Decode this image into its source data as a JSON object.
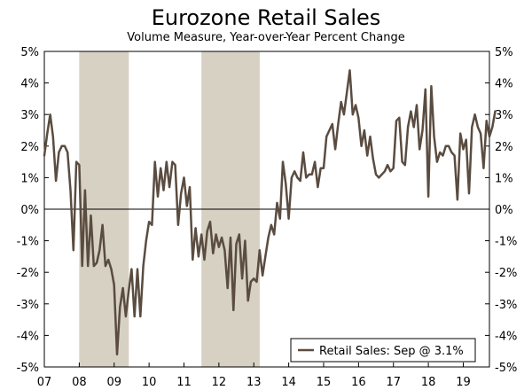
{
  "chart_data": {
    "type": "line",
    "title": "Eurozone Retail Sales",
    "subtitle": "Volume Measure, Year-over-Year Percent Change",
    "xlabel": "",
    "ylabel": "",
    "ylim": [
      -5,
      5
    ],
    "xlim": [
      2007.0,
      2019.75
    ],
    "y_ticks": [
      5,
      4,
      3,
      2,
      1,
      0,
      -1,
      -2,
      -3,
      -4,
      -5
    ],
    "y_tick_labels": [
      "5%",
      "4%",
      "3%",
      "2%",
      "1%",
      "0%",
      "-1%",
      "-2%",
      "-3%",
      "-4%",
      "-5%"
    ],
    "x_ticks": [
      2007,
      2008,
      2009,
      2010,
      2011,
      2012,
      2013,
      2014,
      2015,
      2016,
      2017,
      2018,
      2019
    ],
    "x_tick_labels": [
      "07",
      "08",
      "09",
      "10",
      "11",
      "12",
      "13",
      "14",
      "15",
      "16",
      "17",
      "18",
      "19"
    ],
    "recessions": [
      [
        2008.0,
        2009.42
      ],
      [
        2011.5,
        2013.17
      ]
    ],
    "legend": "Retail Sales: Sep @ 3.1%",
    "legend_position": "bottom-right",
    "colors": {
      "line": "#5a4c40",
      "recession": "#d6d1c3",
      "axis": "#000000"
    },
    "series": [
      {
        "name": "Retail Sales",
        "x_start": 2007.0,
        "x_step": 0.08333,
        "values": [
          1.7,
          2.4,
          3.0,
          2.3,
          0.9,
          1.8,
          2.0,
          2.0,
          1.8,
          0.6,
          -1.3,
          1.5,
          1.4,
          -1.8,
          0.6,
          -1.8,
          -0.2,
          -1.8,
          -1.7,
          -1.3,
          -0.5,
          -1.8,
          -1.6,
          -1.9,
          -2.4,
          -4.6,
          -3.1,
          -2.5,
          -3.4,
          -2.6,
          -1.9,
          -3.4,
          -1.9,
          -3.4,
          -1.8,
          -1.0,
          -0.4,
          -0.5,
          1.5,
          0.4,
          1.3,
          0.6,
          1.5,
          0.7,
          1.5,
          1.4,
          -0.5,
          0.5,
          1.0,
          0.1,
          0.7,
          -1.6,
          -0.6,
          -1.5,
          -0.8,
          -1.6,
          -0.7,
          -0.4,
          -1.4,
          -0.8,
          -1.2,
          -0.9,
          -1.3,
          -2.5,
          -0.9,
          -3.2,
          -1.1,
          -0.8,
          -2.2,
          -1.0,
          -2.9,
          -2.3,
          -2.2,
          -2.3,
          -1.3,
          -2.1,
          -1.5,
          -0.9,
          -0.5,
          -0.8,
          0.2,
          -0.3,
          1.5,
          0.8,
          -0.3,
          1.0,
          1.2,
          1.0,
          0.9,
          1.8,
          1.0,
          1.1,
          1.1,
          1.5,
          0.7,
          1.3,
          1.3,
          2.3,
          2.5,
          2.7,
          1.9,
          2.7,
          3.4,
          3.0,
          3.7,
          4.4,
          3.0,
          3.3,
          2.9,
          2.0,
          2.5,
          1.7,
          2.3,
          1.6,
          1.1,
          1.0,
          1.1,
          1.2,
          1.4,
          1.2,
          1.3,
          2.8,
          2.9,
          1.5,
          1.4,
          2.6,
          3.1,
          2.6,
          3.3,
          1.9,
          2.5,
          3.8,
          0.4,
          3.9,
          2.3,
          1.5,
          1.8,
          1.7,
          2.0,
          2.0,
          1.8,
          1.7,
          0.3,
          2.4,
          1.9,
          2.2,
          0.5,
          2.6,
          3.0,
          2.6,
          2.4,
          1.3,
          2.8,
          2.3,
          2.6,
          3.1
        ]
      }
    ]
  }
}
